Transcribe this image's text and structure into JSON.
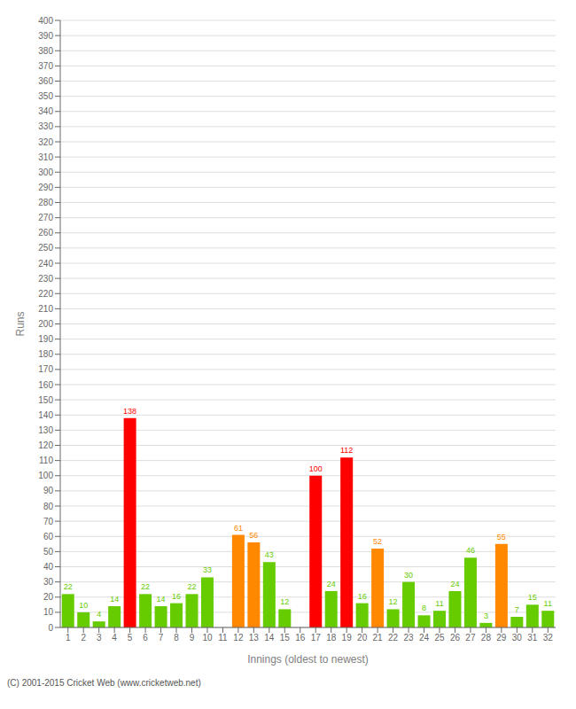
{
  "chart_data": {
    "type": "bar",
    "xlabel": "Innings (oldest to newest)",
    "ylabel": "Runs",
    "categories": [
      "1",
      "2",
      "3",
      "4",
      "5",
      "6",
      "7",
      "8",
      "9",
      "10",
      "11",
      "12",
      "13",
      "14",
      "15",
      "16",
      "17",
      "18",
      "19",
      "20",
      "21",
      "22",
      "23",
      "24",
      "25",
      "26",
      "27",
      "28",
      "29",
      "30",
      "31",
      "32"
    ],
    "values": [
      22,
      10,
      4,
      14,
      138,
      22,
      14,
      16,
      22,
      33,
      0,
      61,
      56,
      43,
      12,
      0,
      100,
      24,
      112,
      16,
      52,
      12,
      30,
      8,
      11,
      24,
      46,
      3,
      55,
      7,
      15,
      11
    ],
    "colors": [
      "#66cc00",
      "#66cc00",
      "#66cc00",
      "#66cc00",
      "#ff0000",
      "#66cc00",
      "#66cc00",
      "#66cc00",
      "#66cc00",
      "#66cc00",
      "#66cc00",
      "#ff8800",
      "#ff8800",
      "#66cc00",
      "#66cc00",
      "#66cc00",
      "#ff0000",
      "#66cc00",
      "#ff0000",
      "#66cc00",
      "#ff8800",
      "#66cc00",
      "#66cc00",
      "#66cc00",
      "#66cc00",
      "#66cc00",
      "#66cc00",
      "#66cc00",
      "#ff8800",
      "#66cc00",
      "#66cc00",
      "#66cc00"
    ],
    "ylim": [
      0,
      400
    ],
    "yticks": [
      0,
      10,
      20,
      30,
      40,
      50,
      60,
      70,
      80,
      90,
      100,
      110,
      120,
      130,
      140,
      150,
      160,
      170,
      180,
      190,
      200,
      210,
      220,
      230,
      240,
      250,
      260,
      270,
      280,
      290,
      300,
      310,
      320,
      330,
      340,
      350,
      360,
      370,
      380,
      390,
      400
    ],
    "grid": true,
    "data_labels": true,
    "annotations": [
      "(C) 2001-2015 Cricket Web (www.cricketweb.net)"
    ]
  }
}
